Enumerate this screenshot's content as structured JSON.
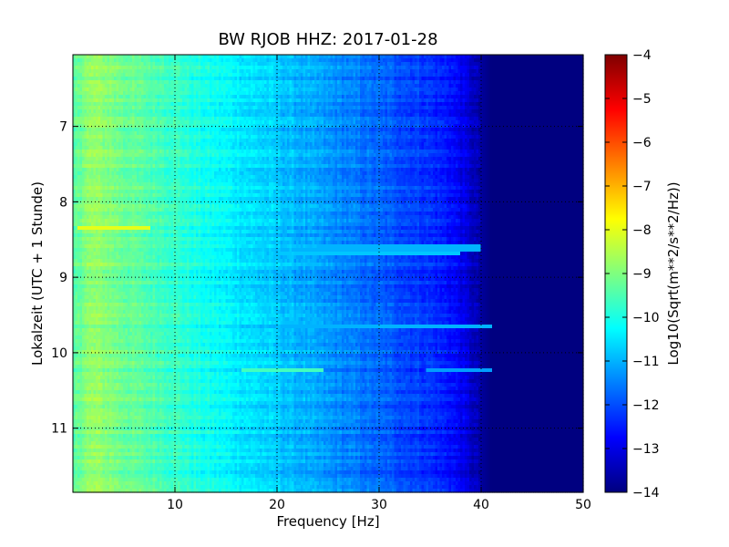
{
  "chart_data": {
    "type": "heatmap",
    "title": "BW RJOB HHZ: 2017-01-28",
    "xlabel": "Frequency [Hz]",
    "ylabel": "Lokalzeit (UTC + 1 Stunde)",
    "colorbar_label": "Log10(Sqrt(m**2/s**2/Hz))",
    "xlim": [
      0,
      50
    ],
    "ylim": [
      6.05,
      11.85
    ],
    "y_inverted": true,
    "x_ticks": [
      10,
      20,
      30,
      40,
      50
    ],
    "y_ticks": [
      7,
      8,
      9,
      10,
      11
    ],
    "color_range": [
      -14,
      -4
    ],
    "colorbar_ticks": [
      -4,
      -5,
      -6,
      -7,
      -8,
      -9,
      -10,
      -11,
      -12,
      -13,
      -14
    ],
    "colormap": "jet",
    "grid": true,
    "frequency_profile": {
      "freq": [
        0,
        1,
        2,
        3,
        5,
        8,
        10,
        12,
        15,
        18,
        20,
        22,
        25,
        28,
        30,
        33,
        35,
        37,
        38,
        39,
        40,
        41,
        42,
        50
      ],
      "level": [
        -9.5,
        -9.0,
        -8.8,
        -8.9,
        -9.2,
        -9.5,
        -9.7,
        -10.0,
        -10.3,
        -10.6,
        -10.8,
        -11.0,
        -11.3,
        -11.6,
        -11.8,
        -12.1,
        -12.3,
        -12.6,
        -12.9,
        -13.3,
        -13.7,
        -14.0,
        -14.0,
        -14.0
      ]
    },
    "events": [
      {
        "time": 8.35,
        "f_start": 0.5,
        "f_end": 7.5,
        "level": -8.0
      },
      {
        "time": 8.6,
        "f_start": 18.0,
        "f_end": 40.0,
        "level": -11.0
      },
      {
        "time": 8.68,
        "f_start": 20.0,
        "f_end": 38.0,
        "level": -10.8
      },
      {
        "time": 9.65,
        "f_start": 20.0,
        "f_end": 41.0,
        "level": -11.0
      },
      {
        "time": 10.23,
        "f_start": 16.5,
        "f_end": 24.5,
        "level": -9.6
      },
      {
        "time": 10.23,
        "f_start": 34.5,
        "f_end": 41.0,
        "level": -11.2
      }
    ]
  }
}
